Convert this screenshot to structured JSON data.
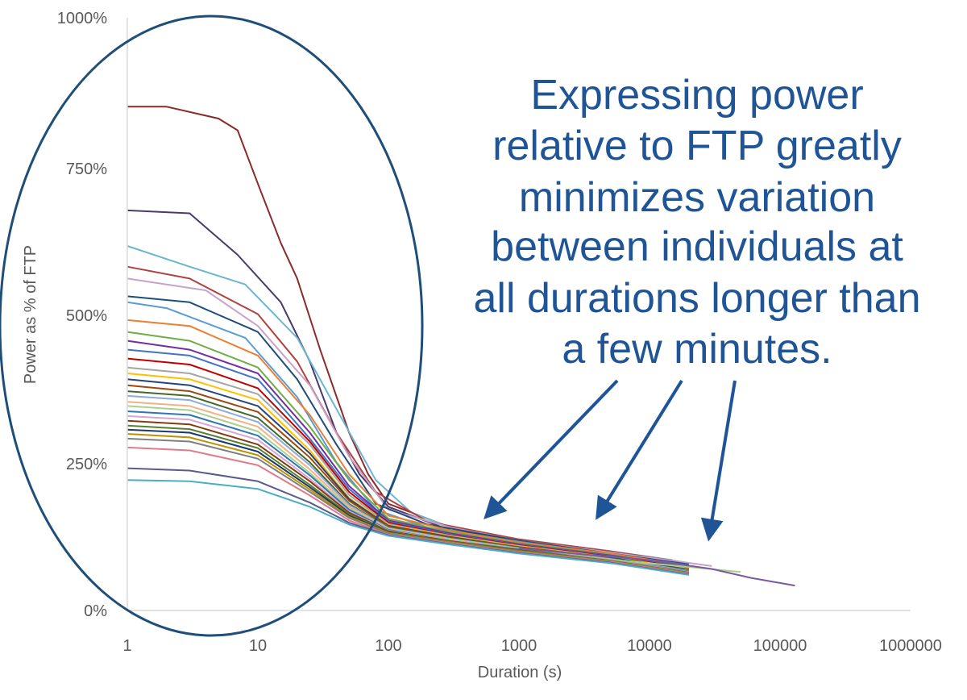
{
  "chart_data": {
    "type": "line",
    "title": "",
    "xlabel": "Duration (s)",
    "ylabel": "Power as % of FTP",
    "x_scale": "log",
    "xlim": [
      1,
      1000000
    ],
    "ylim": [
      0,
      1000
    ],
    "x_ticks": [
      "1",
      "10",
      "100",
      "1000",
      "10000",
      "100000",
      "1000000"
    ],
    "y_ticks": [
      "0%",
      "250%",
      "500%",
      "750%",
      "1000%"
    ],
    "grid": false,
    "legend": "none",
    "annotation": {
      "lines": [
        "Expressing power",
        "relative to FTP greatly",
        "minimizes variation",
        "between individuals at",
        "all durations longer than",
        "a few minutes."
      ],
      "color": "#1f5596"
    },
    "series": [
      {
        "color": "#8b2a2a",
        "x": [
          1,
          2,
          5,
          7,
          10,
          15,
          20,
          30,
          50,
          70,
          100,
          300,
          1000,
          3000,
          10000,
          20000
        ],
        "y": [
          850,
          850,
          830,
          810,
          720,
          620,
          560,
          440,
          300,
          230,
          180,
          140,
          120,
          105,
          90,
          80
        ]
      },
      {
        "color": "#4a3a6b",
        "x": [
          1,
          3,
          7,
          15,
          25,
          40,
          60,
          100,
          300,
          1000,
          3000,
          10000,
          20000
        ],
        "y": [
          675,
          670,
          600,
          520,
          420,
          300,
          230,
          175,
          135,
          118,
          100,
          85,
          70
        ]
      },
      {
        "color": "#6db6d0",
        "x": [
          1,
          3,
          8,
          20,
          40,
          80,
          150,
          300,
          1000,
          5000,
          15000
        ],
        "y": [
          615,
          580,
          550,
          460,
          340,
          220,
          165,
          140,
          120,
          100,
          85
        ]
      },
      {
        "color": "#b0413e",
        "x": [
          1,
          3,
          10,
          20,
          40,
          80,
          200,
          1000,
          5000,
          20000
        ],
        "y": [
          580,
          560,
          500,
          420,
          300,
          200,
          150,
          120,
          100,
          80
        ]
      },
      {
        "color": "#c8a2c8",
        "x": [
          1,
          4,
          10,
          25,
          50,
          100,
          300,
          1000,
          5000,
          30000
        ],
        "y": [
          560,
          540,
          480,
          380,
          260,
          170,
          140,
          118,
          98,
          75
        ]
      },
      {
        "color": "#1f4e79",
        "x": [
          1,
          3,
          10,
          20,
          40,
          80,
          200,
          1000,
          5000,
          20000
        ],
        "y": [
          530,
          520,
          470,
          390,
          280,
          180,
          145,
          118,
          96,
          78
        ]
      },
      {
        "color": "#5b9bd5",
        "x": [
          1,
          2,
          8,
          20,
          40,
          80,
          200,
          1000,
          5000,
          20000
        ],
        "y": [
          520,
          510,
          460,
          360,
          250,
          170,
          140,
          116,
          95,
          76
        ]
      },
      {
        "color": "#ed7d31",
        "x": [
          1,
          3,
          10,
          25,
          50,
          100,
          300,
          1000,
          5000,
          25000
        ],
        "y": [
          490,
          480,
          430,
          330,
          230,
          160,
          135,
          115,
          96,
          72
        ]
      },
      {
        "color": "#70ad47",
        "x": [
          1,
          3,
          10,
          25,
          50,
          100,
          300,
          1000,
          5000,
          20000
        ],
        "y": [
          470,
          455,
          410,
          310,
          220,
          155,
          132,
          113,
          94,
          74
        ]
      },
      {
        "color": "#7030a0",
        "x": [
          1,
          3,
          10,
          25,
          50,
          100,
          300,
          1000,
          5000,
          20000
        ],
        "y": [
          455,
          440,
          400,
          300,
          210,
          152,
          130,
          112,
          93,
          73
        ]
      },
      {
        "color": "#4472c4",
        "x": [
          1,
          3,
          10,
          25,
          50,
          100,
          300,
          1000,
          5000,
          20000
        ],
        "y": [
          440,
          430,
          390,
          290,
          205,
          150,
          128,
          111,
          92,
          72
        ]
      },
      {
        "color": "#c00000",
        "x": [
          1,
          3,
          10,
          25,
          50,
          100,
          300,
          1000,
          5000,
          20000
        ],
        "y": [
          425,
          415,
          375,
          285,
          200,
          148,
          127,
          110,
          91,
          71
        ]
      },
      {
        "color": "#a5a5a5",
        "x": [
          1,
          3,
          10,
          25,
          50,
          100,
          300,
          1000,
          5000,
          20000
        ],
        "y": [
          410,
          400,
          365,
          280,
          195,
          146,
          126,
          109,
          90,
          70
        ]
      },
      {
        "color": "#ffc000",
        "x": [
          1,
          3,
          10,
          25,
          50,
          100,
          300,
          1000,
          5000,
          20000
        ],
        "y": [
          400,
          390,
          355,
          270,
          190,
          144,
          125,
          108,
          90,
          70
        ]
      },
      {
        "color": "#264478",
        "x": [
          1,
          3,
          10,
          25,
          50,
          100,
          300,
          1000,
          5000,
          20000
        ],
        "y": [
          390,
          380,
          345,
          265,
          188,
          143,
          124,
          107,
          89,
          69
        ]
      },
      {
        "color": "#9e480e",
        "x": [
          1,
          3,
          10,
          25,
          50,
          100,
          300,
          1000,
          5000,
          20000
        ],
        "y": [
          380,
          370,
          335,
          258,
          185,
          142,
          123,
          107,
          88,
          68
        ]
      },
      {
        "color": "#43682b",
        "x": [
          1,
          3,
          10,
          25,
          50,
          100,
          300,
          1000,
          5000,
          20000
        ],
        "y": [
          370,
          362,
          325,
          250,
          180,
          140,
          122,
          106,
          88,
          68
        ]
      },
      {
        "color": "#8faadc",
        "x": [
          1,
          3,
          10,
          25,
          50,
          100,
          300,
          1000,
          5000,
          20000
        ],
        "y": [
          362,
          355,
          318,
          245,
          178,
          139,
          121,
          105,
          87,
          67
        ]
      },
      {
        "color": "#f4b183",
        "x": [
          1,
          3,
          10,
          25,
          50,
          100,
          300,
          1000,
          5000,
          20000
        ],
        "y": [
          352,
          345,
          310,
          238,
          175,
          138,
          120,
          104,
          86,
          66
        ]
      },
      {
        "color": "#a9d18e",
        "x": [
          1,
          3,
          10,
          25,
          50,
          100,
          300,
          1000,
          5000,
          50000
        ],
        "y": [
          345,
          338,
          302,
          232,
          172,
          137,
          119,
          104,
          86,
          65
        ]
      },
      {
        "color": "#2e75b6",
        "x": [
          1,
          3,
          10,
          25,
          50,
          100,
          300,
          1000,
          5000,
          20000
        ],
        "y": [
          336,
          330,
          295,
          228,
          170,
          136,
          118,
          103,
          85,
          66
        ]
      },
      {
        "color": "#d6a5d6",
        "x": [
          1,
          3,
          10,
          25,
          50,
          100,
          300,
          1000,
          5000,
          20000
        ],
        "y": [
          328,
          322,
          288,
          222,
          167,
          135,
          118,
          102,
          85,
          65
        ]
      },
      {
        "color": "#843c0c",
        "x": [
          1,
          3,
          10,
          25,
          50,
          100,
          300,
          1000,
          5000,
          20000
        ],
        "y": [
          320,
          314,
          280,
          218,
          165,
          134,
          117,
          102,
          84,
          64
        ]
      },
      {
        "color": "#548235",
        "x": [
          1,
          3,
          10,
          25,
          50,
          100,
          300,
          1000,
          5000,
          20000
        ],
        "y": [
          312,
          306,
          274,
          212,
          162,
          133,
          116,
          101,
          84,
          64
        ]
      },
      {
        "color": "#1f3864",
        "x": [
          1,
          3,
          10,
          25,
          50,
          100,
          300,
          1000,
          5000,
          20000
        ],
        "y": [
          305,
          300,
          268,
          208,
          160,
          132,
          115,
          100,
          83,
          63
        ]
      },
      {
        "color": "#bf9000",
        "x": [
          1,
          3,
          10,
          25,
          50,
          100,
          300,
          1000,
          5000,
          20000
        ],
        "y": [
          298,
          292,
          262,
          204,
          158,
          131,
          115,
          100,
          83,
          63
        ]
      },
      {
        "color": "#7f7f7f",
        "x": [
          1,
          3,
          10,
          25,
          50,
          100,
          300,
          1000,
          5000,
          20000
        ],
        "y": [
          290,
          285,
          256,
          200,
          156,
          130,
          114,
          99,
          82,
          62
        ]
      },
      {
        "color": "#e07b8b",
        "x": [
          1,
          3,
          10,
          25,
          50,
          100,
          300,
          1000,
          5000,
          20000
        ],
        "y": [
          275,
          270,
          245,
          194,
          152,
          128,
          113,
          98,
          82,
          62
        ]
      },
      {
        "color": "#5a5a8c",
        "x": [
          1,
          3,
          10,
          25,
          50,
          100,
          300,
          1000,
          5000,
          20000
        ],
        "y": [
          240,
          236,
          218,
          182,
          148,
          127,
          112,
          97,
          81,
          61
        ]
      },
      {
        "color": "#4bacc6",
        "x": [
          1,
          3,
          10,
          25,
          50,
          100,
          300,
          1000,
          5000,
          20000
        ],
        "y": [
          220,
          218,
          205,
          175,
          145,
          126,
          111,
          96,
          80,
          60
        ]
      },
      {
        "color": "#7a5aa0",
        "x": [
          1000,
          3000,
          10000,
          30000,
          60000,
          130000
        ],
        "y": [
          105,
          95,
          85,
          70,
          55,
          42
        ]
      }
    ]
  }
}
